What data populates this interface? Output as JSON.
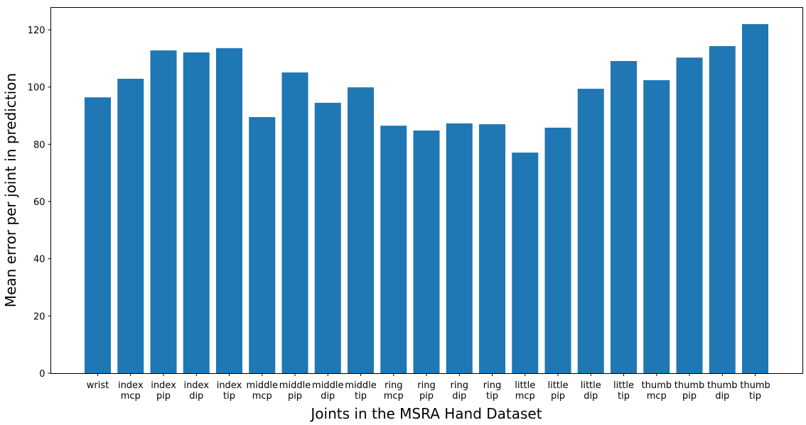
{
  "chart_data": {
    "type": "bar",
    "title": "",
    "xlabel": "Joints in the MSRA Hand Dataset",
    "ylabel": "Mean error per joint in prediction",
    "ylim": [
      0,
      128
    ],
    "yticks": [
      0,
      20,
      40,
      60,
      80,
      100,
      120
    ],
    "grid": false,
    "legend": null,
    "bar_color": "#1f77b4",
    "categories": [
      [
        "wrist"
      ],
      [
        "index",
        "mcp"
      ],
      [
        "index",
        "pip"
      ],
      [
        "index",
        "dip"
      ],
      [
        "index",
        "tip"
      ],
      [
        "middle",
        "mcp"
      ],
      [
        "middle",
        "pip"
      ],
      [
        "middle",
        "dip"
      ],
      [
        "middle",
        "tip"
      ],
      [
        "ring",
        "mcp"
      ],
      [
        "ring",
        "pip"
      ],
      [
        "ring",
        "dip"
      ],
      [
        "ring",
        "tip"
      ],
      [
        "little",
        "mcp"
      ],
      [
        "little",
        "pip"
      ],
      [
        "little",
        "dip"
      ],
      [
        "little",
        "tip"
      ],
      [
        "thumb",
        "mcp"
      ],
      [
        "thumb",
        "pip"
      ],
      [
        "thumb",
        "dip"
      ],
      [
        "thumb",
        "tip"
      ]
    ],
    "values": [
      96.4,
      102.9,
      112.8,
      112.1,
      113.6,
      89.5,
      105.1,
      94.5,
      99.9,
      86.5,
      84.8,
      87.3,
      87.0,
      77.1,
      85.8,
      99.4,
      109.1,
      102.4,
      110.3,
      114.3,
      122.0
    ]
  }
}
